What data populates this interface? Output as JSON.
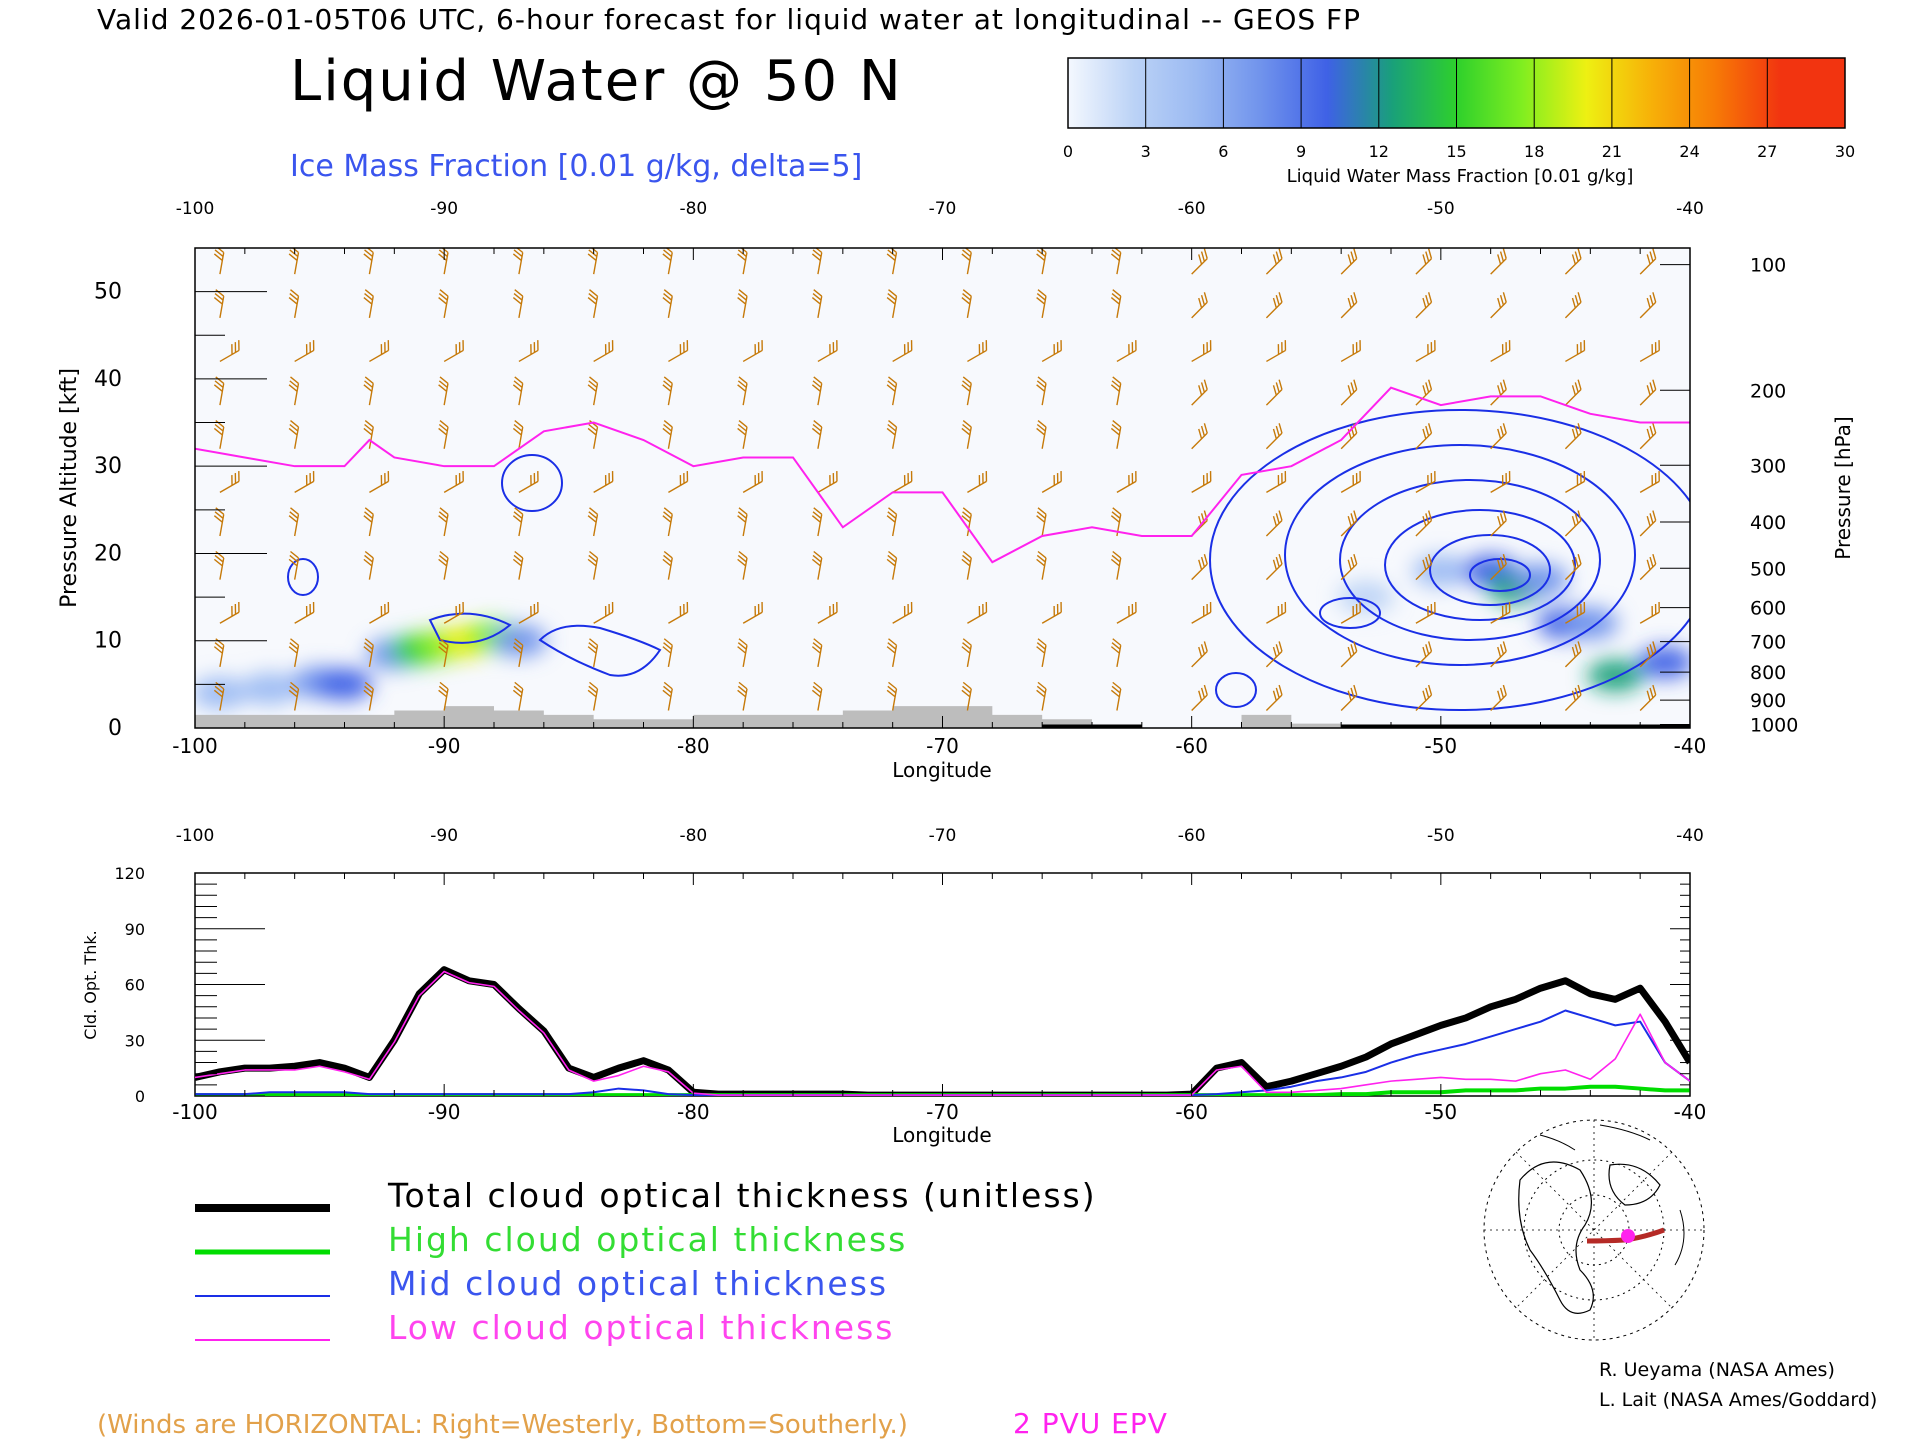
{
  "header": {
    "valid_line": "Valid 2026-01-05T06 UTC, 6-hour forecast for liquid water at longitudinal -- GEOS FP",
    "title": "Liquid Water @ 50 N",
    "subtitle": "Ice Mass Fraction [0.01 g/kg, delta=5]"
  },
  "colorbar": {
    "ticks": [
      "0",
      "3",
      "6",
      "9",
      "12",
      "15",
      "18",
      "21",
      "24",
      "27",
      "30"
    ],
    "label": "Liquid Water Mass Fraction [0.01 g/kg]",
    "colors": [
      "#f4f8fe",
      "#bcd3f6",
      "#9ab9f2",
      "#6f92ec",
      "#3f61e6",
      "#19a07a",
      "#2ed02c",
      "#7fee20",
      "#eef012",
      "#f7b108",
      "#f77a06",
      "#f23410"
    ]
  },
  "footer": {
    "winds_note": "(Winds are HORIZONTAL: Right=Westerly, Bottom=Southerly.)",
    "epv_label": "2 PVU EPV",
    "credit1": "R. Ueyama (NASA Ames)",
    "credit2": "L. Lait (NASA Ames/Goddard)"
  },
  "colors": {
    "total": "#000000",
    "high": "#00dd00",
    "mid": "#1a2fe6",
    "low": "#ff22ee",
    "barb": "#c67a0a",
    "terrain": "#bdbdbd",
    "ice_contour": "#1a2fe6",
    "epv": "#ff22ee",
    "orange_text": "#e2a14a",
    "blue_text": "#3a55ee"
  },
  "chart_data": [
    {
      "type": "heatmap",
      "title": "Liquid Water @ 50 N",
      "xlabel": "Longitude",
      "ylabel": "Pressure Altitude [kft]",
      "y2label": "Pressure [hPa]",
      "xlim": [
        -100,
        -40
      ],
      "ylim": [
        0,
        55
      ],
      "x_ticks": [
        "-100",
        "-90",
        "-80",
        "-70",
        "-60",
        "-50",
        "-40"
      ],
      "y_ticks": [
        "0",
        "10",
        "20",
        "30",
        "40",
        "50"
      ],
      "y2_ticks": [
        "100",
        "200",
        "300",
        "400",
        "500",
        "600",
        "700",
        "800",
        "900",
        "1000"
      ],
      "y2_tick_kft": [
        53.1,
        38.7,
        30.1,
        23.6,
        18.3,
        13.8,
        9.9,
        6.4,
        3.2,
        0.4
      ],
      "colorbar_label": "Liquid Water Mass Fraction [0.01 g/kg]",
      "colorbar_range": [
        0,
        30
      ],
      "liquid_water_cells": [
        {
          "lon": -99,
          "kft": 4.0,
          "value": 5
        },
        {
          "lon": -97,
          "kft": 4.5,
          "value": 6
        },
        {
          "lon": -95,
          "kft": 5.2,
          "value": 8
        },
        {
          "lon": -94,
          "kft": 5.0,
          "value": 10
        },
        {
          "lon": -92,
          "kft": 8.5,
          "value": 9
        },
        {
          "lon": -91,
          "kft": 9.0,
          "value": 15
        },
        {
          "lon": -90,
          "kft": 9.5,
          "value": 19
        },
        {
          "lon": -89,
          "kft": 10.0,
          "value": 21
        },
        {
          "lon": -88,
          "kft": 10.5,
          "value": 18
        },
        {
          "lon": -87,
          "kft": 10.0,
          "value": 8
        },
        {
          "lon": -53,
          "kft": 15.0,
          "value": 4
        },
        {
          "lon": -50,
          "kft": 18.0,
          "value": 7
        },
        {
          "lon": -48,
          "kft": 18.0,
          "value": 10
        },
        {
          "lon": -47,
          "kft": 16.0,
          "value": 14
        },
        {
          "lon": -46,
          "kft": 17.0,
          "value": 9
        },
        {
          "lon": -45,
          "kft": 12.0,
          "value": 10
        },
        {
          "lon": -44,
          "kft": 12.0,
          "value": 9
        },
        {
          "lon": -43,
          "kft": 6.0,
          "value": 14
        },
        {
          "lon": -41,
          "kft": 7.5,
          "value": 10
        }
      ],
      "epv_2pvu_line": {
        "lon": [
          -100,
          -98,
          -96,
          -94,
          -93,
          -92,
          -90,
          -88,
          -86,
          -84,
          -82,
          -80,
          -78,
          -76,
          -74,
          -72,
          -70,
          -68,
          -66,
          -64,
          -62,
          -60,
          -58,
          -56,
          -54,
          -52,
          -50,
          -48,
          -46,
          -44,
          -42,
          -40
        ],
        "kft": [
          32,
          31,
          30,
          30,
          33,
          31,
          30,
          30,
          34,
          35,
          33,
          30,
          31,
          31,
          23,
          27,
          27,
          19,
          22,
          23,
          22,
          22,
          29,
          30,
          33,
          39,
          37,
          38,
          38,
          36,
          35,
          35
        ]
      },
      "terrain": {
        "lon": [
          -100,
          -98,
          -96,
          -94,
          -92,
          -90,
          -88,
          -86,
          -84,
          -82,
          -80,
          -78,
          -76,
          -74,
          -72,
          -70,
          -68,
          -66,
          -64,
          -62,
          -60,
          -58,
          -56,
          -54,
          -52
        ],
        "kft": [
          1.5,
          1.5,
          1.5,
          1.5,
          2,
          2.5,
          2,
          1.5,
          1,
          1,
          1.5,
          1.5,
          1.5,
          2,
          2.5,
          2.5,
          1.5,
          1,
          0,
          0,
          0,
          1.5,
          0.5,
          0,
          0
        ]
      },
      "wind_barbs": "orange barbs on a grid of every ~3 degrees longitude and every ~5 kft"
    },
    {
      "type": "line",
      "ylabel": "Cld. Opt. Thk.",
      "xlabel": "Longitude",
      "xlim": [
        -100,
        -40
      ],
      "ylim": [
        0,
        120
      ],
      "x_ticks": [
        "-100",
        "-90",
        "-80",
        "-70",
        "-60",
        "-50",
        "-40"
      ],
      "y_ticks": [
        "0",
        "30",
        "60",
        "90",
        "120"
      ],
      "x": [
        -100,
        -99,
        -98,
        -97,
        -96,
        -95,
        -94,
        -93,
        -92,
        -91,
        -90,
        -89,
        -88,
        -87,
        -86,
        -85,
        -84,
        -83,
        -82,
        -81,
        -80,
        -79,
        -78,
        -77,
        -76,
        -75,
        -74,
        -73,
        -72,
        -71,
        -70,
        -69,
        -68,
        -67,
        -66,
        -65,
        -64,
        -63,
        -62,
        -61,
        -60,
        -59,
        -58,
        -57,
        -56,
        -55,
        -54,
        -53,
        -52,
        -51,
        -50,
        -49,
        -48,
        -47,
        -46,
        -45,
        -44,
        -43,
        -42,
        -41,
        -40
      ],
      "series": [
        {
          "name": "Total cloud optical thickness (unitless)",
          "values": [
            10,
            13,
            15,
            15,
            16,
            18,
            15,
            10,
            30,
            55,
            68,
            62,
            60,
            47,
            35,
            15,
            10,
            15,
            19,
            14,
            2,
            1,
            1,
            1,
            1,
            1,
            1,
            0.5,
            0.5,
            0.5,
            0.5,
            0.5,
            0.5,
            0.5,
            0.5,
            0.5,
            0.5,
            0.5,
            0.5,
            0.5,
            1,
            15,
            18,
            5,
            8,
            12,
            16,
            21,
            28,
            33,
            38,
            42,
            48,
            52,
            58,
            62,
            55,
            52,
            58,
            40,
            18
          ]
        },
        {
          "name": "High cloud optical thickness",
          "values": [
            0.5,
            0.5,
            0.5,
            0.5,
            0.5,
            0.5,
            0.5,
            0.5,
            0.5,
            0.5,
            0.5,
            0.5,
            0.5,
            0.5,
            0.5,
            0.5,
            0.5,
            0.5,
            0.5,
            0.5,
            0.5,
            0.5,
            0.5,
            0.5,
            0.5,
            0.5,
            0.5,
            0.5,
            0.5,
            0.5,
            0.5,
            0.5,
            0.5,
            0.5,
            0.5,
            0.5,
            0.5,
            0.5,
            0.5,
            0.5,
            0.5,
            0.5,
            0.5,
            0.5,
            0.5,
            0.5,
            1,
            1,
            2,
            2,
            2,
            3,
            3,
            3,
            4,
            4,
            5,
            5,
            4,
            3,
            3
          ]
        },
        {
          "name": "Mid cloud optical thickness",
          "values": [
            1,
            1,
            1,
            2,
            2,
            2,
            2,
            1,
            1,
            1,
            1,
            1,
            1,
            1,
            1,
            1,
            2,
            4,
            3,
            1,
            0.5,
            0.5,
            0.5,
            0.5,
            0.5,
            0.5,
            0.5,
            0.5,
            0.5,
            0.5,
            0.5,
            0.5,
            0.5,
            0.5,
            0.5,
            0.5,
            0.5,
            0.5,
            0.5,
            0.5,
            0.5,
            1,
            2,
            3,
            5,
            8,
            10,
            13,
            18,
            22,
            25,
            28,
            32,
            36,
            40,
            46,
            42,
            38,
            40,
            18,
            8
          ]
        },
        {
          "name": "Low cloud optical thickness",
          "values": [
            10,
            12,
            14,
            14,
            14,
            16,
            13,
            9,
            29,
            54,
            67,
            61,
            59,
            46,
            34,
            14,
            8,
            11,
            16,
            13,
            1.5,
            0.5,
            0.5,
            0.5,
            0.5,
            0.5,
            0.5,
            0.5,
            0.5,
            0.5,
            0.5,
            0.5,
            0.5,
            0.5,
            0.5,
            0.5,
            0.5,
            0.5,
            0.5,
            0.5,
            0.5,
            14,
            16,
            2,
            2,
            3,
            4,
            6,
            8,
            9,
            10,
            9,
            9,
            8,
            12,
            14,
            9,
            20,
            44,
            18,
            8
          ]
        }
      ]
    }
  ]
}
